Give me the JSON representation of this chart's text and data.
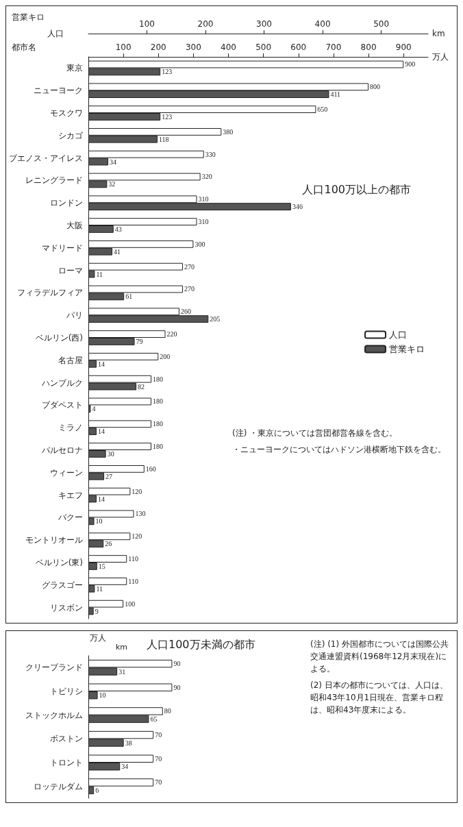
{
  "chart_data": [
    {
      "type": "bar",
      "orientation": "horizontal",
      "title": "人口100万以上の都市",
      "xlabel": "人口",
      "x2label": "営業キロ",
      "ylabel": "都市名",
      "categories": [
        "東京",
        "ニューヨーク",
        "モスクワ",
        "シカゴ",
        "ブエノス・アイレス",
        "レニングラード",
        "ロンドン",
        "大阪",
        "マドリード",
        "ローマ",
        "フィラデルフィア",
        "パリ",
        "ベルリン(西)",
        "名古屋",
        "ハンブルク",
        "ブダペスト",
        "ミラノ",
        "バルセロナ",
        "ウィーン",
        "キエフ",
        "バクー",
        "モントリオール",
        "ベルリン(東)",
        "グラスゴー",
        "リスボン"
      ],
      "series": [
        {
          "name": "人口",
          "color": "#ffffff",
          "values": [
            900,
            800,
            650,
            380,
            330,
            320,
            310,
            310,
            300,
            270,
            270,
            260,
            220,
            200,
            180,
            180,
            180,
            180,
            160,
            120,
            130,
            120,
            110,
            110,
            100
          ]
        },
        {
          "name": "営業キロ",
          "color": "#555555",
          "axis": "x2",
          "values": [
            123,
            411,
            123,
            118,
            34,
            32,
            346,
            43,
            41,
            11,
            61,
            205,
            79,
            14,
            82,
            4,
            14,
            30,
            27,
            14,
            10,
            26,
            15,
            11,
            9
          ]
        }
      ],
      "xlim": [
        0,
        970
      ],
      "xticks": [
        100,
        200,
        300,
        400,
        500,
        600,
        700,
        800,
        900
      ],
      "x2lim": [
        0,
        580
      ],
      "x2ticks": [
        100,
        200,
        300,
        400,
        500
      ],
      "data_labels": true,
      "legend": "right",
      "annotations": [
        "万人",
        "km",
        "(注) ・東京については営団都営各線を含む。",
        "・ニューヨークについてはハドソン港横断地下鉄を含む。"
      ]
    },
    {
      "type": "bar",
      "orientation": "horizontal",
      "title": "人口100万未満の都市",
      "categories": [
        "クリーブランド",
        "トビリシ",
        "ストックホルム",
        "ボストン",
        "トロント",
        "ロッテルダム"
      ],
      "series": [
        {
          "color": "#ffffff",
          "values": [
            90,
            90,
            80,
            70,
            70,
            70
          ]
        },
        {
          "color": "#555555",
          "values": [
            31,
            10,
            65,
            38,
            34,
            6
          ]
        }
      ],
      "tick_labels": "y",
      "data_labels": true,
      "annotations": [
        "万人",
        "km",
        "(注) (1) 外国都市については国際公共交通連盟資料(1968年12月末現在)による。",
        "(2) 日本の都市については、人口は、昭和43年10月1日現在、営業キロ程は、昭和43年度末による。"
      ]
    }
  ]
}
